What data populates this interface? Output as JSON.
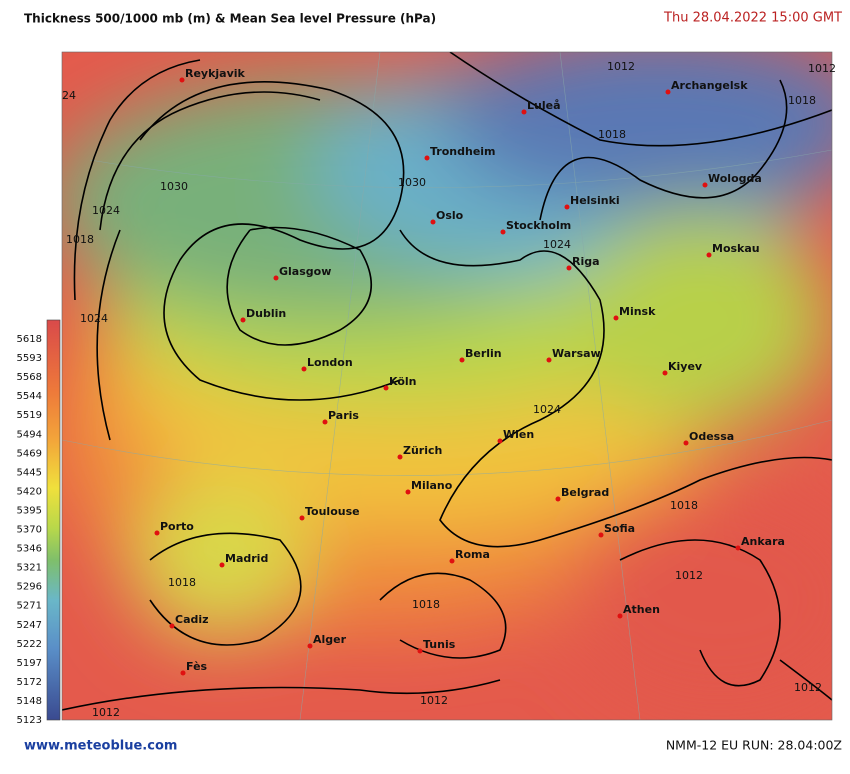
{
  "header": {
    "title": "Thickness 500/1000 mb (m)  & Mean Sea level Pressure (hPa)",
    "datetime": "Thu 28.04.2022  15:00 GMT"
  },
  "legend": {
    "values": [
      5618,
      5593,
      5568,
      5544,
      5519,
      5494,
      5469,
      5445,
      5420,
      5395,
      5370,
      5346,
      5321,
      5296,
      5271,
      5247,
      5222,
      5197,
      5172,
      5148,
      5123
    ]
  },
  "cities": [
    "Reykjavik",
    "Luleå",
    "Archangelsk",
    "Trondheim",
    "Wologda",
    "Helsinki",
    "Oslo",
    "Stockholm",
    "Moskau",
    "Riga",
    "Glasgow",
    "Dublin",
    "Minsk",
    "Berlin",
    "Warsaw",
    "London",
    "Kiyev",
    "Köln",
    "Paris",
    "Wien",
    "Odessa",
    "Zürich",
    "Milano",
    "Belgrad",
    "Toulouse",
    "Porto",
    "Sofia",
    "Ankara",
    "Roma",
    "Madrid",
    "Cadiz",
    "Athen",
    "Alger",
    "Tunis",
    "Fès"
  ],
  "isobar_labels": [
    24,
    1030,
    1024,
    1018,
    1024,
    1030,
    1024,
    1024,
    1018,
    1018,
    1018,
    1012,
    1012,
    1012,
    1012,
    1012,
    1018,
    1018,
    1012
  ],
  "footer": {
    "site": "www.meteoblue.com",
    "run": "NMM-12 EU  RUN: 28.04:00Z"
  }
}
